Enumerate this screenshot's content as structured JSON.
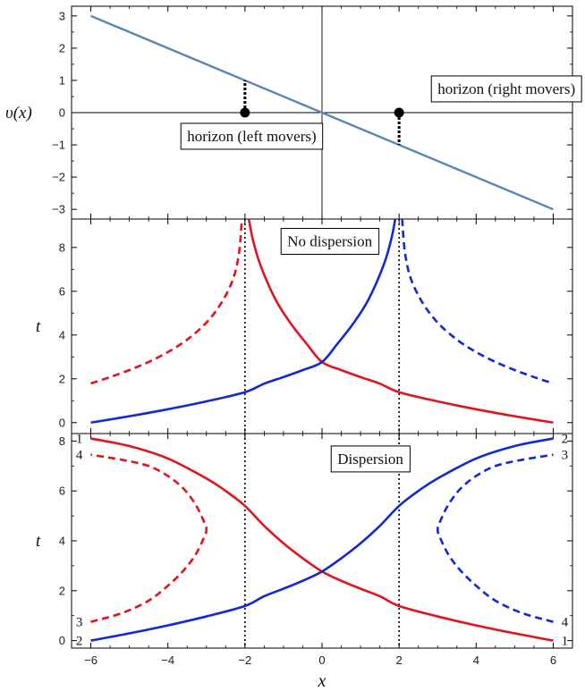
{
  "chart_data": [
    {
      "type": "line",
      "panel": "top",
      "xlabel": "",
      "ylabel": "υ(x)",
      "xlim": [
        -6.5,
        6.5
      ],
      "ylim": [
        -3.3,
        3.3
      ],
      "xticks": [
        -6,
        -4,
        -2,
        0,
        2,
        4,
        6
      ],
      "yticks": [
        -3,
        -2,
        -1,
        0,
        1,
        2,
        3
      ],
      "series": [
        {
          "values": {
            "x": [
              -6,
              6
            ],
            "y": [
              3,
              -3
            ]
          },
          "color": "#5b84b1",
          "style": "solid"
        }
      ],
      "markers": [
        {
          "x": -2,
          "y": 0,
          "stem_to": 1
        },
        {
          "x": 2,
          "y": 0,
          "stem_to": -1
        }
      ],
      "annotations": [
        {
          "text": "horizon (right movers)",
          "x": 3.0,
          "y": 0.75
        },
        {
          "text": "horizon (left movers)",
          "x": -3.5,
          "y": -0.72
        }
      ]
    },
    {
      "type": "line",
      "panel": "middle",
      "xlabel": "",
      "ylabel": "t",
      "xlim": [
        -6.5,
        6.5
      ],
      "ylim": [
        -0.5,
        9.3
      ],
      "yticks": [
        0,
        2,
        4,
        6,
        8
      ],
      "vlines": [
        -2,
        2
      ],
      "annotation": {
        "text": "No dispersion",
        "x": -0.9,
        "y": 8.3
      },
      "series": [
        {
          "color": "#e0141b",
          "style": "solid",
          "values": {
            "x": [
              -1.9,
              -1.8,
              -1.6,
              -1.2,
              -0.8,
              -0.4,
              0,
              0.5,
              1,
              1.5,
              2,
              3,
              4,
              5,
              6
            ],
            "y": [
              9.3,
              8.4,
              7.2,
              5.6,
              4.5,
              3.6,
              2.77,
              2.4,
              2.08,
              1.78,
              1.39,
              0.97,
              0.61,
              0.29,
              0
            ]
          }
        },
        {
          "color": "#1428d2",
          "style": "solid",
          "values": {
            "x": [
              -6,
              -5,
              -4,
              -3,
              -2,
              -1.5,
              -1,
              -0.5,
              0,
              0.4,
              0.8,
              1.2,
              1.6,
              1.8,
              1.9
            ],
            "y": [
              0,
              0.29,
              0.61,
              0.97,
              1.39,
              1.78,
              2.08,
              2.4,
              2.77,
              3.6,
              4.5,
              5.6,
              7.2,
              8.4,
              9.3
            ]
          }
        },
        {
          "color": "#e0141b",
          "style": "dashed",
          "values": {
            "x": [
              -6,
              -5.5,
              -5,
              -4.5,
              -4,
              -3.5,
              -3,
              -2.6,
              -2.3,
              -2.15,
              -2.08
            ],
            "y": [
              1.79,
              2.08,
              2.4,
              2.77,
              3.22,
              3.79,
              4.57,
              5.5,
              6.6,
              7.8,
              9.3
            ]
          }
        },
        {
          "color": "#1428d2",
          "style": "dashed",
          "values": {
            "x": [
              2.08,
              2.15,
              2.3,
              2.6,
              3,
              3.5,
              4,
              4.5,
              5,
              5.5,
              6
            ],
            "y": [
              9.3,
              7.8,
              6.6,
              5.5,
              4.57,
              3.79,
              3.22,
              2.77,
              2.4,
              2.08,
              1.79
            ]
          }
        }
      ]
    },
    {
      "type": "line",
      "panel": "bottom",
      "xlabel": "x",
      "ylabel": "t",
      "xlim": [
        -6.5,
        6.5
      ],
      "ylim": [
        -0.3,
        8.3
      ],
      "xticks": [
        -6,
        -4,
        -2,
        0,
        2,
        4,
        6
      ],
      "yticks": [
        0,
        2,
        4,
        6,
        8
      ],
      "vlines": [
        -2,
        2
      ],
      "annotation": {
        "text": "Dispersion",
        "x": 0.4,
        "y": 7.3
      },
      "series": [
        {
          "color": "#e0141b",
          "style": "solid",
          "values": {
            "x": [
              -6,
              -5,
              -4,
              -3,
              -2.5,
              -2,
              -1.5,
              -1,
              -0.5,
              0,
              0.5,
              1,
              1.5,
              2,
              3,
              4,
              5,
              6
            ],
            "y": [
              8.1,
              7.8,
              7.3,
              6.5,
              6.0,
              5.4,
              4.6,
              3.9,
              3.3,
              2.77,
              2.4,
              2.08,
              1.78,
              1.39,
              0.97,
              0.61,
              0.29,
              0
            ]
          }
        },
        {
          "color": "#1428d2",
          "style": "solid",
          "values": {
            "x": [
              -6,
              -5,
              -4,
              -3,
              -2,
              -1.5,
              -1,
              -0.5,
              0,
              0.5,
              1,
              1.5,
              2,
              2.5,
              3,
              4,
              5,
              6
            ],
            "y": [
              0,
              0.29,
              0.61,
              0.97,
              1.39,
              1.78,
              2.08,
              2.4,
              2.77,
              3.3,
              3.9,
              4.6,
              5.4,
              6.0,
              6.5,
              7.3,
              7.8,
              8.1
            ]
          }
        },
        {
          "color": "#e0141b",
          "style": "dashed",
          "values": {
            "x": [
              -6,
              -5.2,
              -4.5,
              -4,
              -3.6,
              -3.3,
              -3.1,
              -3.0,
              -3.1,
              -3.3,
              -3.6,
              -4,
              -4.5,
              -5.2,
              -6
            ],
            "y": [
              0.75,
              1.1,
              1.6,
              2.2,
              2.8,
              3.4,
              4.0,
              4.45,
              4.9,
              5.5,
              6.1,
              6.6,
              7.0,
              7.25,
              7.45
            ]
          }
        },
        {
          "color": "#1428d2",
          "style": "dashed",
          "values": {
            "x": [
              6,
              5.2,
              4.5,
              4,
              3.6,
              3.3,
              3.1,
              3.0,
              3.1,
              3.3,
              3.6,
              4,
              4.5,
              5.2,
              6
            ],
            "y": [
              0.75,
              1.1,
              1.6,
              2.2,
              2.8,
              3.4,
              4.0,
              4.45,
              4.9,
              5.5,
              6.1,
              6.6,
              7.0,
              7.25,
              7.45
            ]
          }
        }
      ],
      "curve_labels": [
        {
          "text": "1",
          "x": -6.3,
          "y": 8.1
        },
        {
          "text": "4",
          "x": -6.3,
          "y": 7.45
        },
        {
          "text": "3",
          "x": -6.3,
          "y": 0.75
        },
        {
          "text": "2",
          "x": -6.3,
          "y": 0.0
        },
        {
          "text": "2",
          "x": 6.3,
          "y": 8.1
        },
        {
          "text": "3",
          "x": 6.3,
          "y": 7.45
        },
        {
          "text": "4",
          "x": 6.3,
          "y": 0.75
        },
        {
          "text": "1",
          "x": 6.3,
          "y": 0.0
        }
      ]
    }
  ]
}
